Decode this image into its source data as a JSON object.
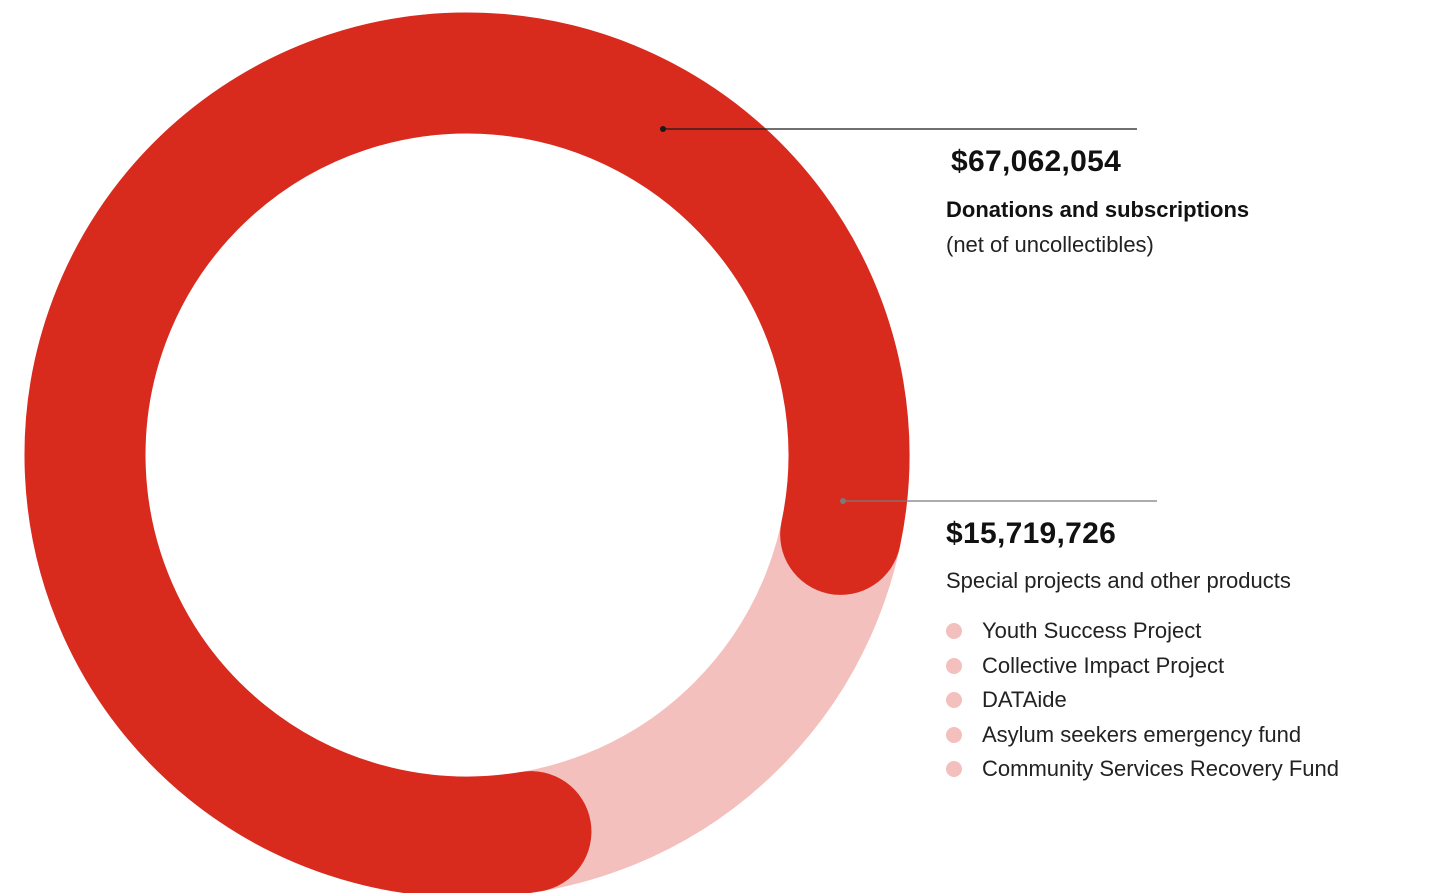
{
  "colors": {
    "primary": "#d92a1e",
    "secondary": "#f3c0bd",
    "leader_primary": "#1a1a1a",
    "leader_secondary": "#7a7a7a"
  },
  "chart_data": {
    "type": "pie",
    "style": "donut",
    "title": "",
    "slices": [
      {
        "value": 67062054,
        "amount": "$67,062,054",
        "label": "Donations and subscriptions",
        "note": "(net of uncollectibles)",
        "color": "#d92a1e"
      },
      {
        "value": 15719726,
        "amount": "$15,719,726",
        "label": "Special projects and other products",
        "color": "#f3c0bd",
        "items": [
          "Youth Success Project",
          "Collective Impact Project",
          "DATAide",
          "Asylum seekers emergency fund",
          "Community Services Recovery Fund"
        ]
      }
    ]
  }
}
